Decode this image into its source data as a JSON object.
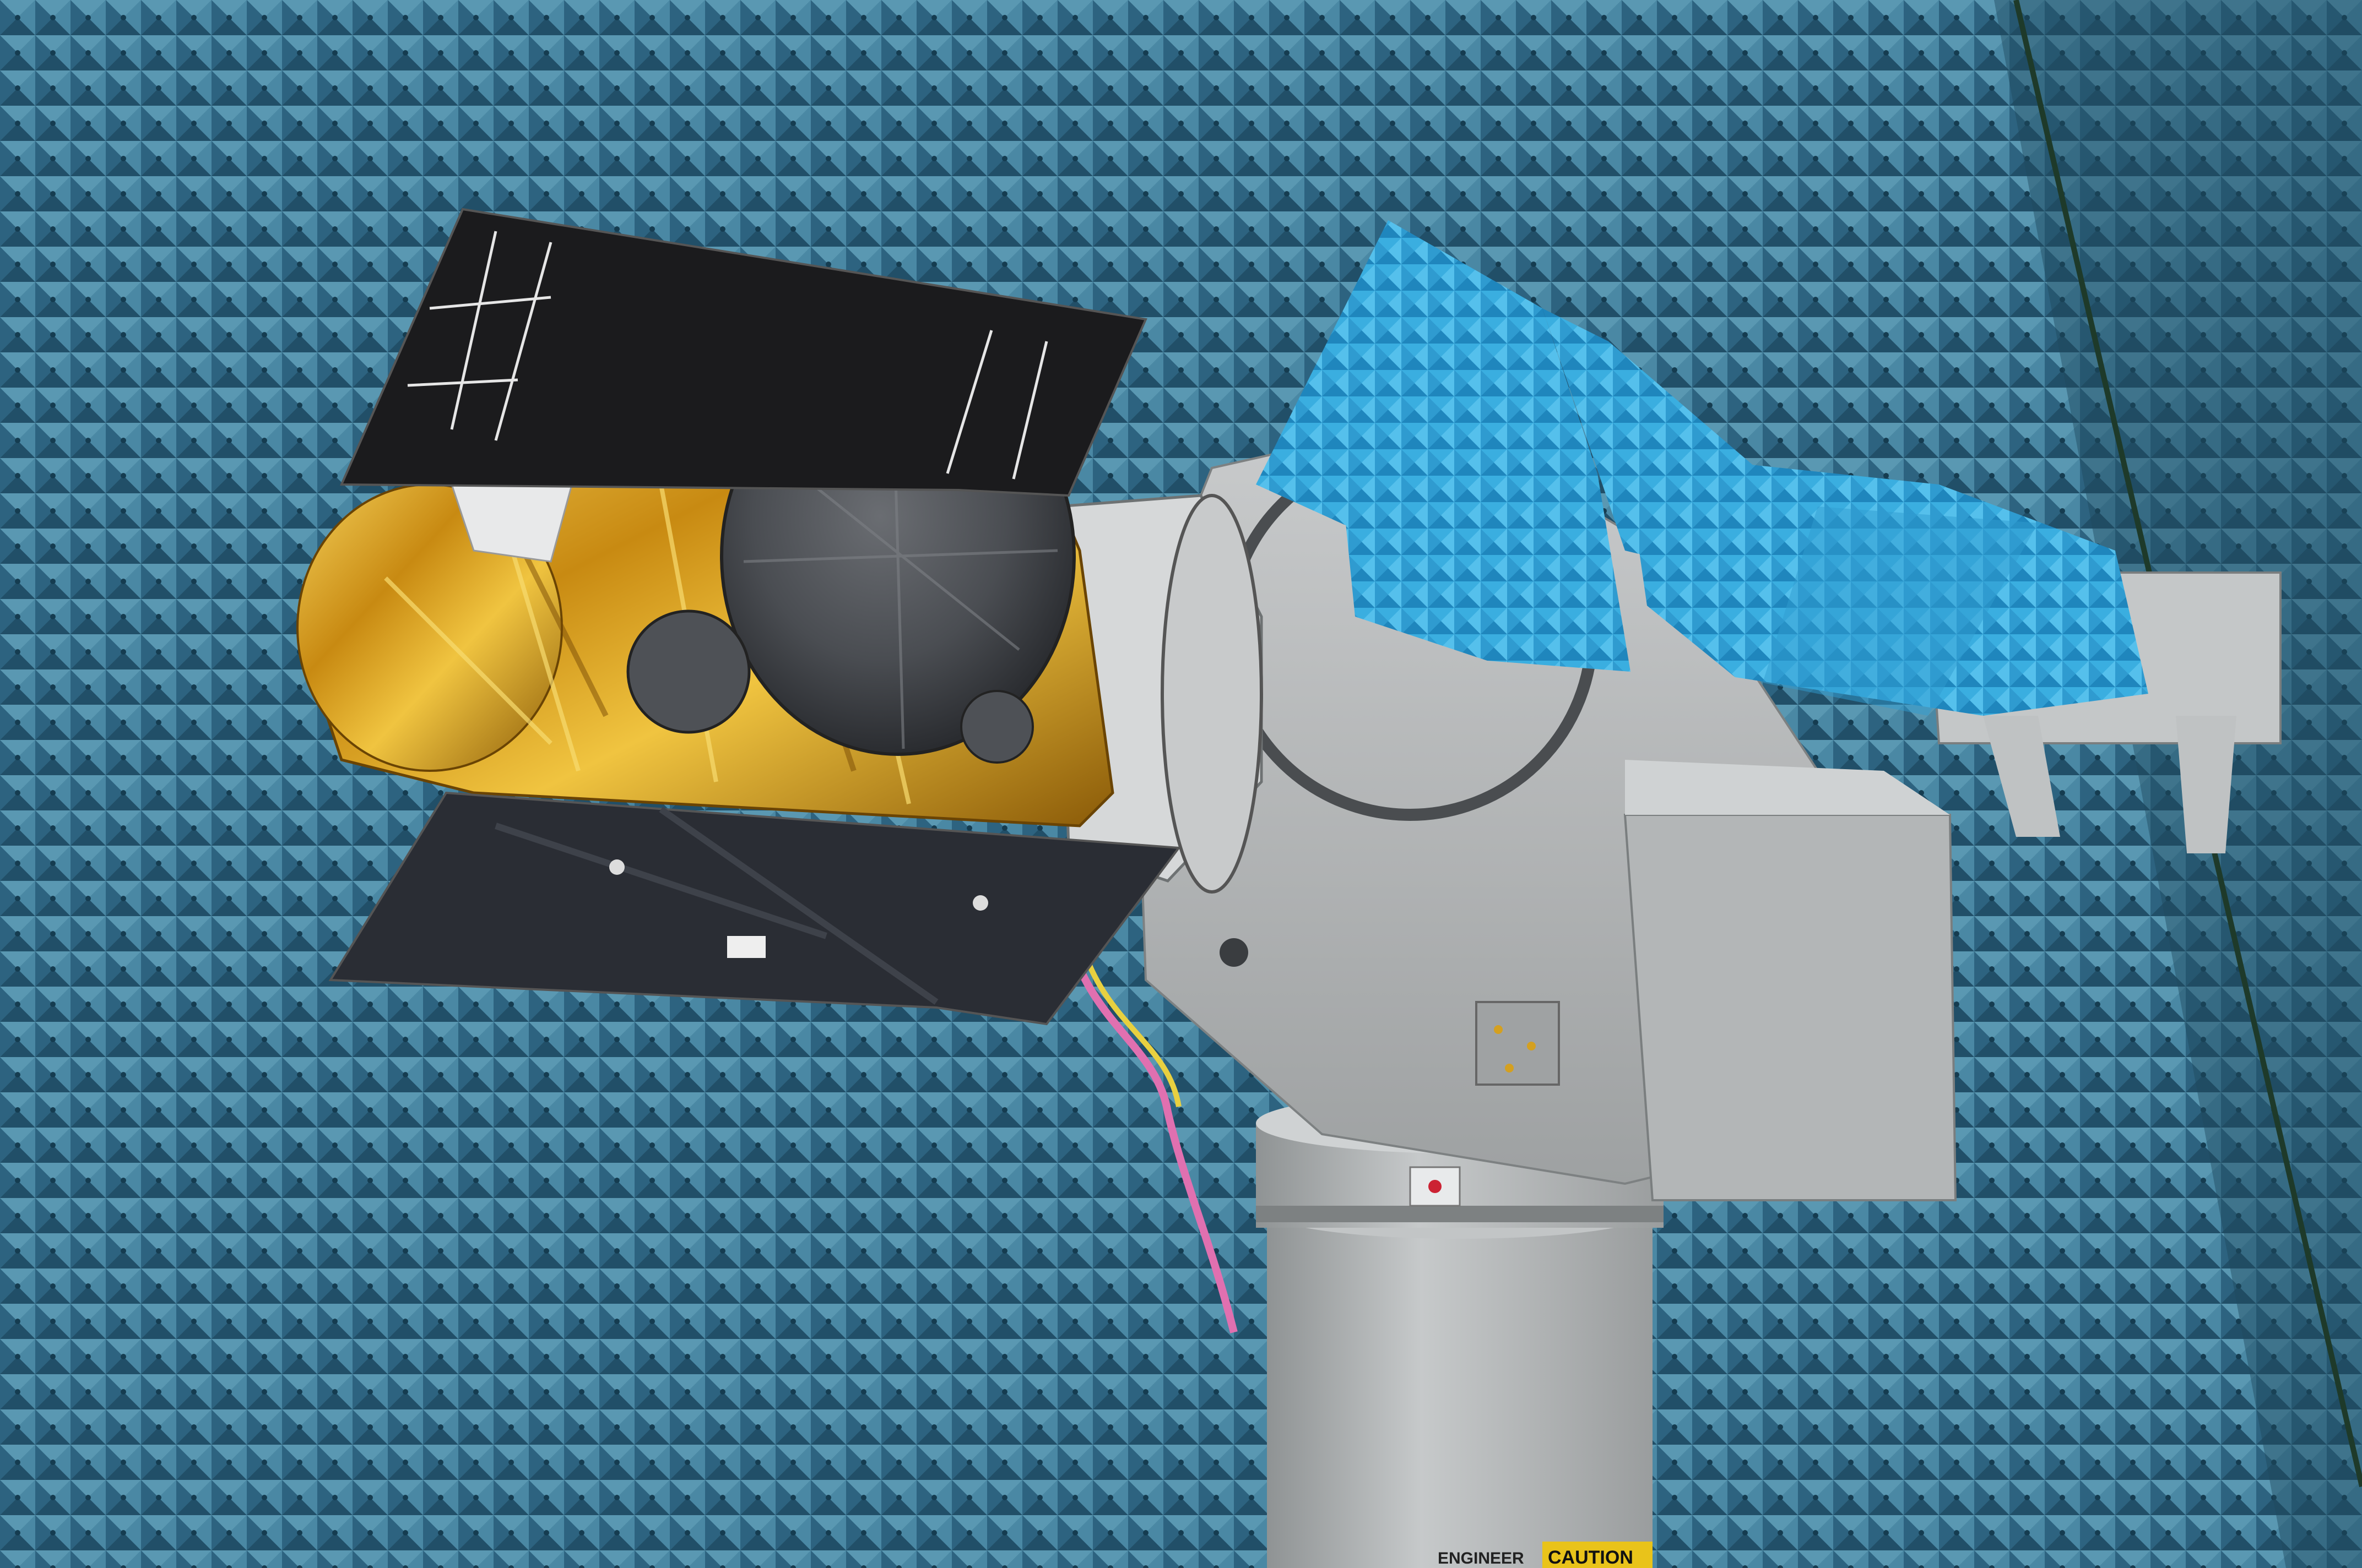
{
  "scene": {
    "colors": {
      "chamber_wall": "#3a7590",
      "chamber_wall_dark": "#1f4a5e",
      "absorber_light_blue": "#3aaee0",
      "gold_foil": "#d9a520",
      "solar_panel": "#1b1b1d",
      "black_blanket": "#2a2d34",
      "positioner_gray": "#b9bcbd",
      "column_gray": "#aeb1b2",
      "warning_yellow": "#e9c31a"
    },
    "objects": {
      "satellite": "satellite-with-gold-foil-insulation",
      "solar_panel_top": "solar-array-panel-top",
      "solar_panel_bottom": "black-thermal-blanket-panel",
      "reflector": "silver-antenna-reflector",
      "positioner": "antenna-test-positioner",
      "absorber": "blue-rf-absorber-foam",
      "column": "gray-pedestal-column",
      "chamber": "anechoic-chamber-wall"
    },
    "caution_label": "CAUTION",
    "engineer_label": "ENGINEER"
  }
}
